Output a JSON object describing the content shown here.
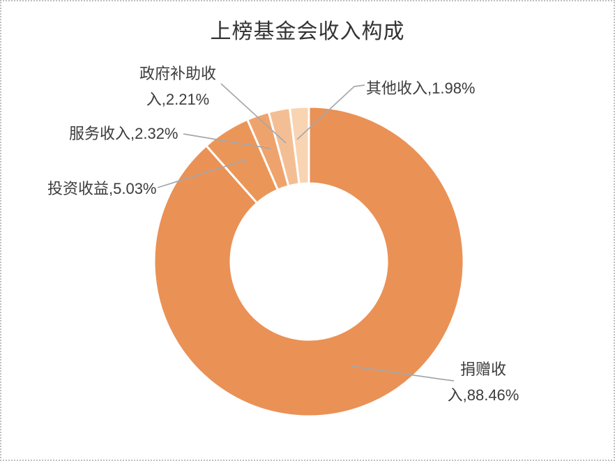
{
  "chart_data": {
    "type": "pie",
    "subtype": "doughnut",
    "title": "上榜基金会收入构成",
    "unit": "%",
    "hole_ratio": 0.5,
    "start_angle_deg": 0,
    "direction": "clockwise",
    "legend_position": "none",
    "categories": [
      "捐赠收入",
      "投资收益",
      "服务收入",
      "政府补助收入",
      "其他收入"
    ],
    "values": [
      88.46,
      5.03,
      2.32,
      2.21,
      1.98
    ],
    "slices": [
      {
        "name": "捐赠收入",
        "value": 88.46,
        "color": "#EA9156",
        "label_lines": [
          "捐赠收",
          "入,88.46%"
        ]
      },
      {
        "name": "投资收益",
        "value": 5.03,
        "color": "#EB9659",
        "label_lines": [
          "投资收益,5.03%"
        ]
      },
      {
        "name": "服务收入",
        "value": 2.32,
        "color": "#EFA36C",
        "label_lines": [
          "服务收入,2.32%"
        ]
      },
      {
        "name": "政府补助收入",
        "value": 2.21,
        "color": "#F4BE94",
        "label_lines": [
          "政府补助收",
          "入,2.21%"
        ]
      },
      {
        "name": "其他收入",
        "value": 1.98,
        "color": "#F9D4B2",
        "label_lines": [
          "其他收入,1.98%"
        ]
      }
    ],
    "slice_border_color": "#FFFFFF",
    "leader_line_color": "#A3A8AD",
    "label_text_color": "#3C3C3C",
    "title_color": "#333333",
    "frame_border_color": "#BCBFC2"
  }
}
